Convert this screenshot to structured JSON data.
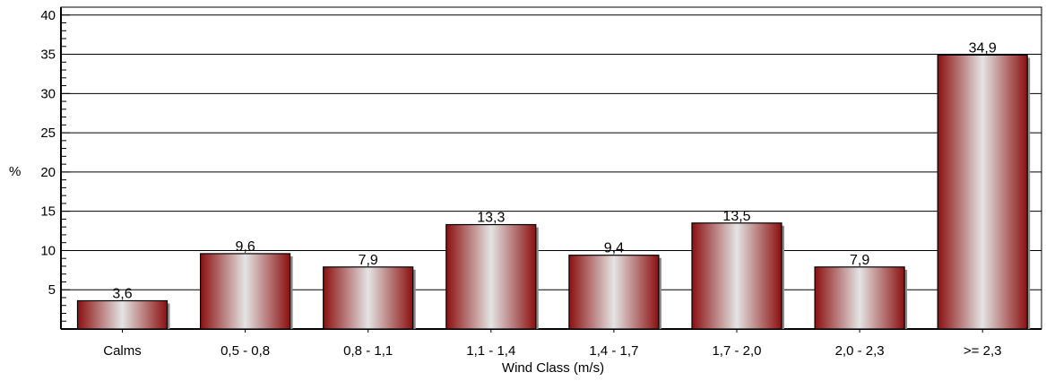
{
  "chart_data": {
    "type": "bar",
    "categories": [
      "Calms",
      "0,5 -  0,8",
      "0,8 -  1,1",
      "1,1 -  1,4",
      "1,4 -  1,7",
      "1,7 -  2,0",
      "2,0 -  2,3",
      ">=  2,3"
    ],
    "values": [
      3.6,
      9.6,
      7.9,
      13.3,
      9.4,
      13.5,
      7.9,
      34.9
    ],
    "data_labels": [
      "3,6",
      "9,6",
      "7,9",
      "13,3",
      "9,4",
      "13,5",
      "7,9",
      "34,9"
    ],
    "title": "",
    "xlabel": "Wind Class (m/s)",
    "ylabel": "%",
    "ylim": [
      0,
      41
    ],
    "yticks": [
      5,
      10,
      15,
      20,
      25,
      30,
      35,
      40
    ],
    "ytick_labels": [
      "5",
      "10",
      "15",
      "20",
      "25",
      "30",
      "35",
      "40"
    ],
    "grid": true,
    "bar_color": "#8b1010",
    "bar_highlight_color": "#e4e4e4"
  }
}
